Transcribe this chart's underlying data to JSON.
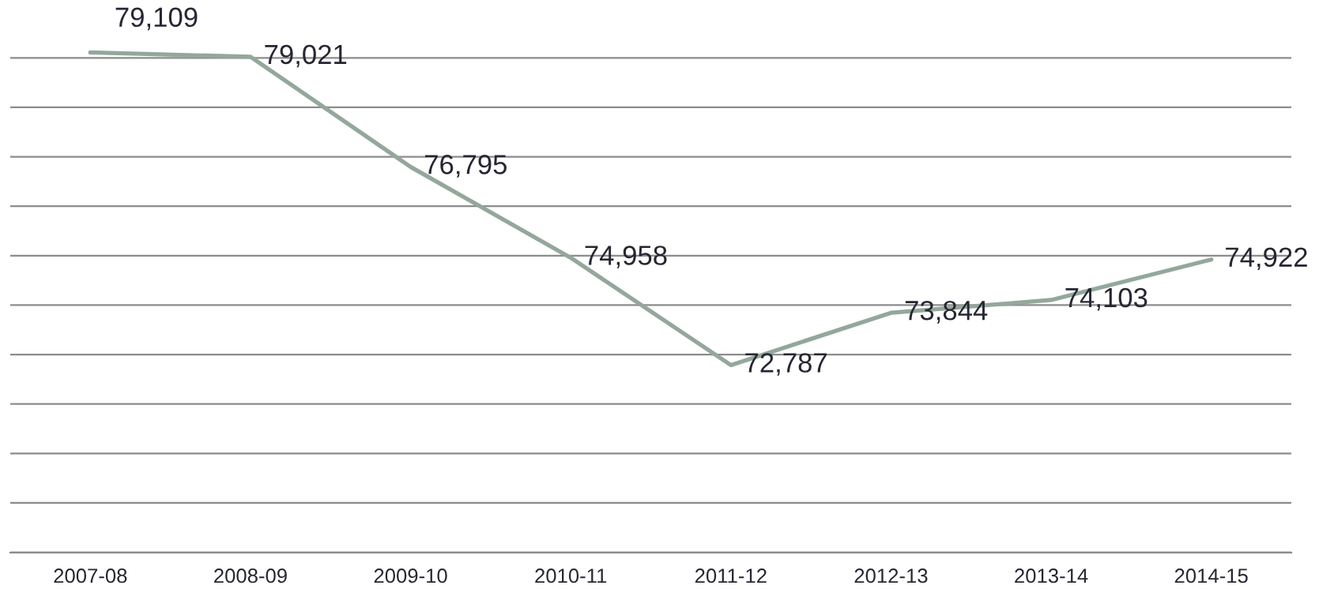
{
  "chart_data": {
    "type": "line",
    "categories": [
      "2007-08",
      "2008-09",
      "2009-10",
      "2010-11",
      "2011-12",
      "2012-13",
      "2013-14",
      "2014-15"
    ],
    "series": [
      {
        "color": "#94a79b",
        "values": [
          79109,
          79021,
          76795,
          74958,
          72787,
          73844,
          74103,
          74922
        ],
        "value_labels": [
          "79,109",
          "79,021",
          "76,795",
          "74,958",
          "72,787",
          "73,844",
          "74,103",
          "74,922"
        ]
      }
    ],
    "grid": "y",
    "tick_labels": "x",
    "line_style": "solid"
  }
}
